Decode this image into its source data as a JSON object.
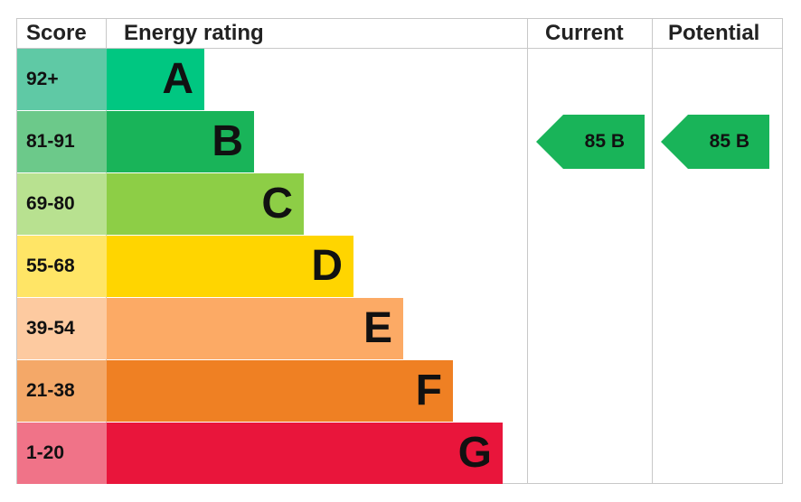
{
  "chart_data": {
    "type": "table",
    "headers": {
      "score": "Score",
      "rating": "Energy rating",
      "current": "Current",
      "potential": "Potential"
    },
    "bands": [
      {
        "score": "92+",
        "letter": "A",
        "color": "#00c781",
        "score_color": "#5fc9a5"
      },
      {
        "score": "81-91",
        "letter": "B",
        "color": "#19b459",
        "score_color": "#6cc98a"
      },
      {
        "score": "69-80",
        "letter": "C",
        "color": "#8dce46",
        "score_color": "#b8e190"
      },
      {
        "score": "55-68",
        "letter": "D",
        "color": "#ffd500",
        "score_color": "#ffe566"
      },
      {
        "score": "39-54",
        "letter": "E",
        "color": "#fcaa65",
        "score_color": "#fdcaa0"
      },
      {
        "score": "21-38",
        "letter": "F",
        "color": "#ef8023",
        "score_color": "#f4a868"
      },
      {
        "score": "1-20",
        "letter": "G",
        "color": "#e9153b",
        "score_color": "#f07388"
      }
    ],
    "current": {
      "value": 85,
      "band": "B",
      "label": "85 B",
      "color": "#19b459"
    },
    "potential": {
      "value": 85,
      "band": "B",
      "label": "85 B",
      "color": "#19b459"
    }
  }
}
